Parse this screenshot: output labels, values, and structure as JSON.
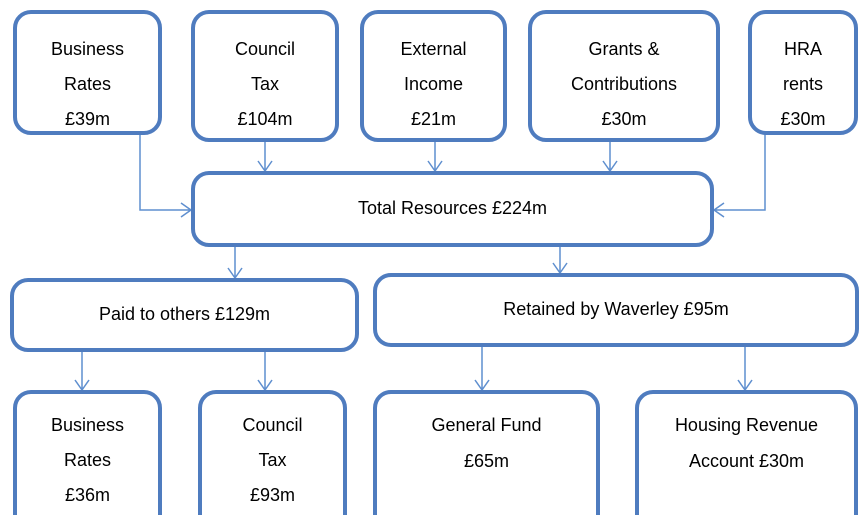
{
  "nodes": [
    {
      "lines": [
        "Business",
        "Rates",
        "£39m"
      ]
    },
    {
      "lines": [
        "Council",
        "Tax",
        "£104m"
      ]
    },
    {
      "lines": [
        "External",
        "Income",
        "£21m"
      ]
    },
    {
      "lines": [
        "Grants &",
        "Contributions",
        "£30m"
      ]
    },
    {
      "lines": [
        "HRA",
        "rents",
        "£30m"
      ]
    },
    {
      "lines": [
        "Total Resources £224m"
      ]
    },
    {
      "lines": [
        "Paid to others £129m"
      ]
    },
    {
      "lines": [
        "Retained by Waverley £95m"
      ]
    },
    {
      "lines": [
        "Business",
        "Rates",
        "£36m"
      ]
    },
    {
      "lines": [
        "Council",
        "Tax",
        "£93m"
      ]
    },
    {
      "lines": [
        "General Fund",
        "£65m"
      ]
    },
    {
      "lines": [
        "Housing Revenue",
        "Account £30m"
      ]
    }
  ]
}
